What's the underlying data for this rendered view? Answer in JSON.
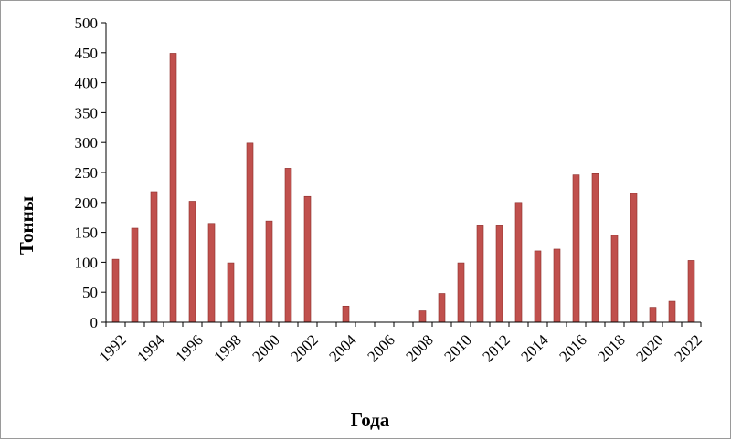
{
  "chart_data": {
    "type": "bar",
    "xlabel": "Года",
    "ylabel": "Тонны",
    "ylim": [
      0,
      500
    ],
    "yticks": [
      "0",
      "50",
      "100",
      "150",
      "200",
      "250",
      "300",
      "350",
      "400",
      "450",
      "500"
    ],
    "grid": false,
    "legend": "none",
    "bar_color": "#c0504d",
    "bar_edge_color": "#8c2d2b",
    "categories": [
      "1992",
      "1993",
      "1994",
      "1995",
      "1996",
      "1997",
      "1998",
      "1999",
      "2000",
      "2001",
      "2002",
      "2003",
      "2004",
      "2005",
      "2006",
      "2007",
      "2008",
      "2009",
      "2010",
      "2011",
      "2012",
      "2013",
      "2014",
      "2015",
      "2016",
      "2017",
      "2018",
      "2019",
      "2020",
      "2021",
      "2022"
    ],
    "xtick_labels": [
      "1992",
      "",
      "1994",
      "",
      "1996",
      "",
      "1998",
      "",
      "2000",
      "",
      "2002",
      "",
      "2004",
      "",
      "2006",
      "",
      "2008",
      "",
      "2010",
      "",
      "2012",
      "",
      "2014",
      "",
      "2016",
      "",
      "2018",
      "",
      "2020",
      "",
      "2022"
    ],
    "values": [
      105,
      157,
      218,
      449,
      202,
      165,
      99,
      299,
      169,
      257,
      210,
      0,
      27,
      0,
      0,
      0,
      19,
      48,
      99,
      161,
      161,
      200,
      119,
      122,
      246,
      248,
      145,
      215,
      25,
      35,
      103
    ]
  }
}
